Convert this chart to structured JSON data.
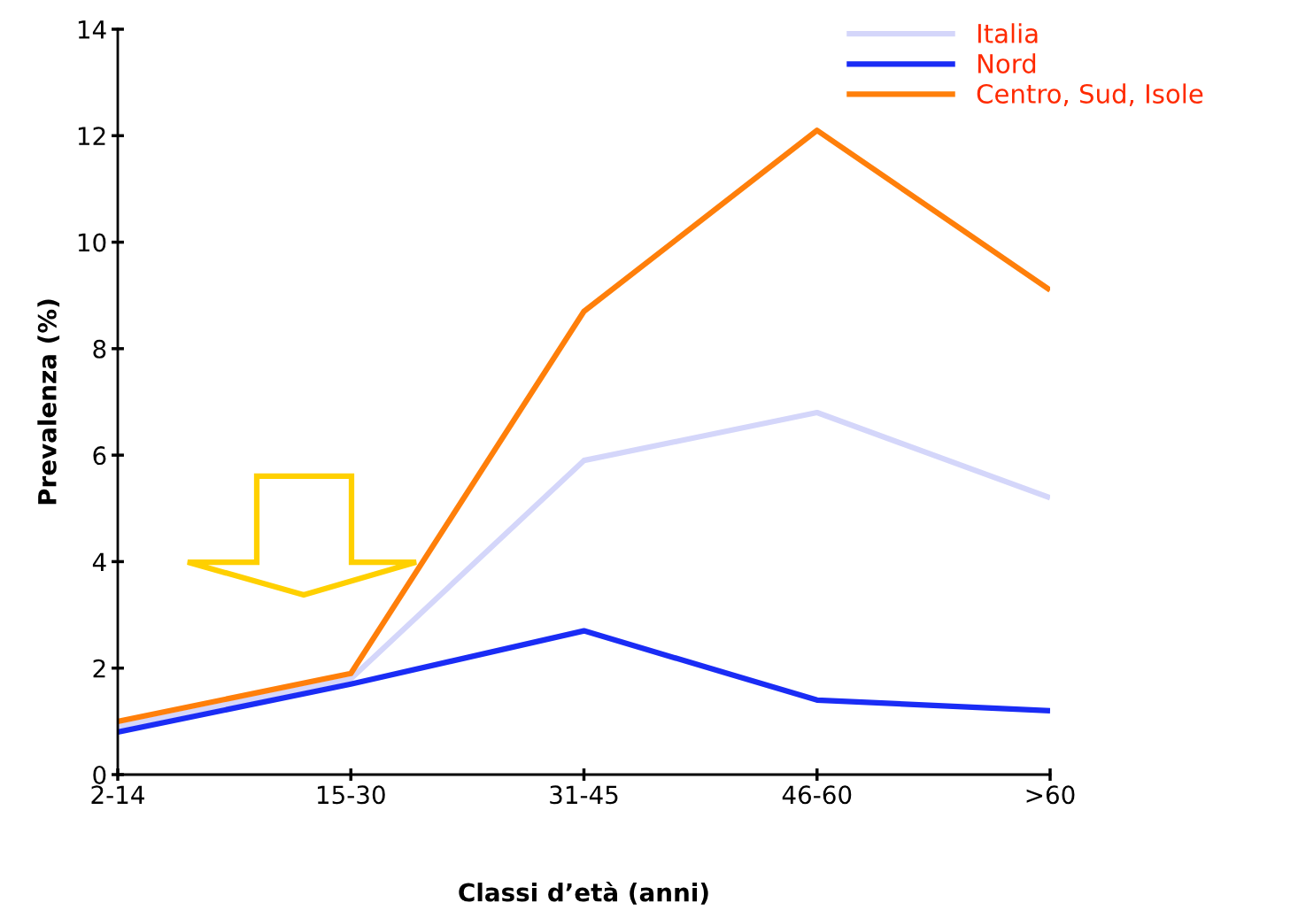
{
  "chart_data": {
    "type": "line",
    "xlabel": "Classi d’età (anni)",
    "ylabel": "Prevalenza (%)",
    "categories": [
      "2-14",
      "15-30",
      "31-45",
      "46-60",
      ">60"
    ],
    "series": [
      {
        "name": "Italia",
        "color": "#d4d6fa",
        "values": [
          0.9,
          1.8,
          5.9,
          6.8,
          5.2
        ]
      },
      {
        "name": "Nord",
        "color": "#1a2cf5",
        "values": [
          0.8,
          1.7,
          2.7,
          1.4,
          1.2
        ]
      },
      {
        "name": "Centro, Sud, Isole",
        "color": "#ff7f0a",
        "values": [
          1.0,
          1.9,
          8.7,
          12.1,
          9.1
        ]
      }
    ],
    "ylim": [
      0,
      14
    ],
    "yticks": [
      0,
      2,
      4,
      6,
      8,
      10,
      12,
      14
    ],
    "grid": false,
    "legend": "top right",
    "marker": "none",
    "line_style": "solid"
  }
}
